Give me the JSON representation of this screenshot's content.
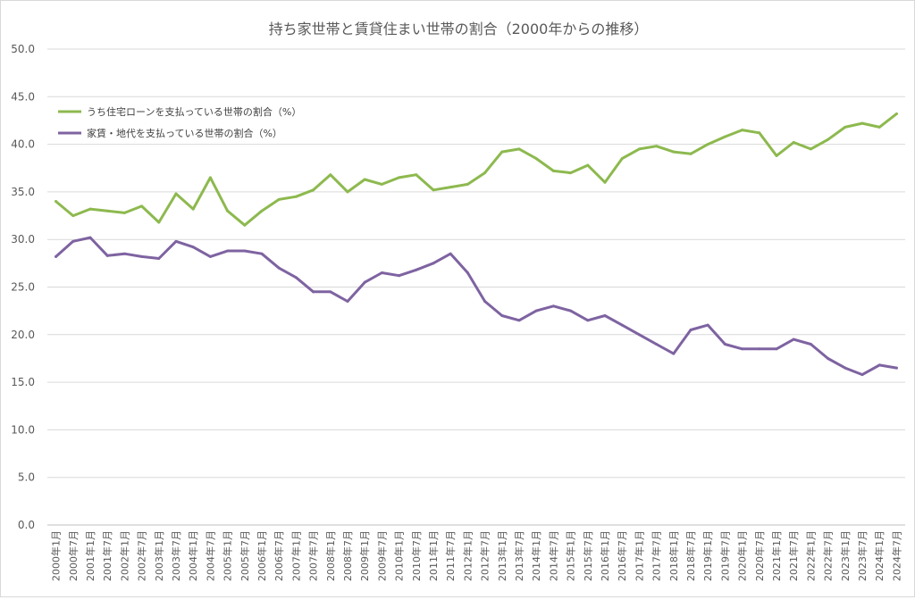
{
  "chart_data": {
    "type": "line",
    "title": "持ち家世帯と賃貸住まい世帯の割合（2000年からの推移）",
    "ylim": [
      0,
      50
    ],
    "yticks": [
      "0.0",
      "5.0",
      "10.0",
      "15.0",
      "20.0",
      "25.0",
      "30.0",
      "35.0",
      "40.0",
      "45.0",
      "50.0"
    ],
    "grid": true,
    "legend_position": "top-left",
    "categories": [
      "2000年1月",
      "2000年7月",
      "2001年1月",
      "2001年7月",
      "2002年1月",
      "2002年7月",
      "2003年1月",
      "2003年7月",
      "2004年1月",
      "2004年7月",
      "2005年1月",
      "2005年7月",
      "2006年1月",
      "2006年7月",
      "2007年1月",
      "2007年7月",
      "2008年1月",
      "2008年7月",
      "2009年1月",
      "2009年7月",
      "2010年1月",
      "2010年7月",
      "2011年1月",
      "2011年7月",
      "2012年1月",
      "2012年7月",
      "2013年1月",
      "2013年7月",
      "2014年1月",
      "2014年7月",
      "2015年1月",
      "2015年7月",
      "2016年1月",
      "2016年7月",
      "2017年1月",
      "2017年7月",
      "2018年1月",
      "2018年7月",
      "2019年1月",
      "2019年7月",
      "2020年1月",
      "2020年7月",
      "2021年1月",
      "2021年7月",
      "2022年1月",
      "2022年7月",
      "2023年1月",
      "2023年7月",
      "2024年1月",
      "2024年7月"
    ],
    "series": [
      {
        "name": "うち住宅ローンを支払っている世帯の割合（%）",
        "color": "#8db94e",
        "values": [
          34.0,
          32.5,
          33.2,
          33.0,
          32.8,
          33.5,
          31.8,
          34.8,
          33.2,
          36.5,
          33.0,
          31.5,
          33.0,
          34.2,
          34.5,
          35.2,
          36.8,
          35.0,
          36.3,
          35.8,
          36.5,
          36.8,
          35.2,
          35.5,
          35.8,
          37.0,
          39.2,
          39.5,
          38.5,
          37.2,
          37.0,
          37.8,
          36.0,
          38.5,
          39.5,
          39.8,
          39.2,
          39.0,
          40.0,
          40.8,
          41.5,
          41.2,
          38.8,
          40.2,
          39.5,
          40.5,
          41.8,
          42.2,
          41.8,
          43.2
        ]
      },
      {
        "name": "家賃・地代を支払っている世帯の割合（%）",
        "color": "#7e63a1",
        "values": [
          28.2,
          29.8,
          30.2,
          28.3,
          28.5,
          28.2,
          28.0,
          29.8,
          29.2,
          28.2,
          28.8,
          28.8,
          28.5,
          27.0,
          26.0,
          24.5,
          24.5,
          23.5,
          25.5,
          26.5,
          26.2,
          26.8,
          27.5,
          28.5,
          26.5,
          23.5,
          22.0,
          21.5,
          22.5,
          23.0,
          22.5,
          21.5,
          22.0,
          21.0,
          20.0,
          19.0,
          18.0,
          20.5,
          21.0,
          19.0,
          18.5,
          18.5,
          18.5,
          19.5,
          19.0,
          17.5,
          16.5,
          15.8,
          16.8,
          16.5
        ]
      }
    ]
  }
}
